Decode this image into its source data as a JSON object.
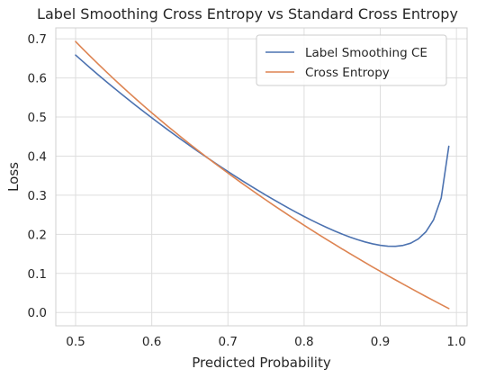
{
  "chart_data": {
    "type": "line",
    "title": "Label Smoothing Cross Entropy vs Standard Cross Entropy",
    "xlabel": "Predicted Probability",
    "ylabel": "Loss",
    "xlim": [
      0.474,
      1.014
    ],
    "ylim": [
      -0.034,
      0.728
    ],
    "xticks": [
      0.5,
      0.6,
      0.7,
      0.8,
      0.9,
      1.0
    ],
    "xtick_labels": [
      "0.5",
      "0.6",
      "0.7",
      "0.8",
      "0.9",
      "1.0"
    ],
    "yticks": [
      0.0,
      0.1,
      0.2,
      0.3,
      0.4,
      0.5,
      0.6,
      0.7
    ],
    "ytick_labels": [
      "0.0",
      "0.1",
      "0.2",
      "0.3",
      "0.4",
      "0.5",
      "0.6",
      "0.7"
    ],
    "grid": true,
    "legend_position": "top-right",
    "x": [
      0.5,
      0.51,
      0.52,
      0.53,
      0.54,
      0.55,
      0.56,
      0.57,
      0.58,
      0.59,
      0.6,
      0.61,
      0.62,
      0.63,
      0.64,
      0.65,
      0.66,
      0.67,
      0.68,
      0.69,
      0.7,
      0.71,
      0.72,
      0.73,
      0.74,
      0.75,
      0.76,
      0.77,
      0.78,
      0.79,
      0.8,
      0.81,
      0.82,
      0.83,
      0.84,
      0.85,
      0.86,
      0.87,
      0.88,
      0.89,
      0.9,
      0.91,
      0.92,
      0.93,
      0.94,
      0.95,
      0.96,
      0.97,
      0.98,
      0.99
    ],
    "series": [
      {
        "name": "Label Smoothing CE",
        "color": "#4c72b0",
        "values": [
          0.6585,
          0.6412,
          0.6242,
          0.6075,
          0.5911,
          0.575,
          0.5591,
          0.5435,
          0.5281,
          0.513,
          0.4981,
          0.4834,
          0.4689,
          0.4547,
          0.4406,
          0.4268,
          0.4131,
          0.3997,
          0.3865,
          0.3735,
          0.3607,
          0.3481,
          0.3357,
          0.3236,
          0.3117,
          0.3,
          0.2886,
          0.2774,
          0.2665,
          0.256,
          0.2457,
          0.2358,
          0.2263,
          0.2172,
          0.2086,
          0.2005,
          0.1931,
          0.1864,
          0.1805,
          0.1756,
          0.1719,
          0.1697,
          0.1694,
          0.1717,
          0.1774,
          0.1882,
          0.2066,
          0.2373,
          0.293,
          0.4252
        ]
      },
      {
        "name": "Cross Entropy",
        "color": "#dd8452",
        "values": [
          0.6931,
          0.6733,
          0.6539,
          0.6349,
          0.6162,
          0.5978,
          0.5798,
          0.5621,
          0.5447,
          0.5276,
          0.5108,
          0.4943,
          0.478,
          0.462,
          0.4463,
          0.4308,
          0.4155,
          0.4005,
          0.3857,
          0.3711,
          0.3567,
          0.3425,
          0.3285,
          0.3147,
          0.3011,
          0.2877,
          0.2744,
          0.2614,
          0.2485,
          0.2357,
          0.2231,
          0.2107,
          0.1985,
          0.1863,
          0.1744,
          0.1625,
          0.1508,
          0.1393,
          0.1278,
          0.1165,
          0.1054,
          0.0943,
          0.0834,
          0.0726,
          0.0619,
          0.0513,
          0.0408,
          0.0305,
          0.0202,
          0.0101
        ]
      }
    ]
  }
}
